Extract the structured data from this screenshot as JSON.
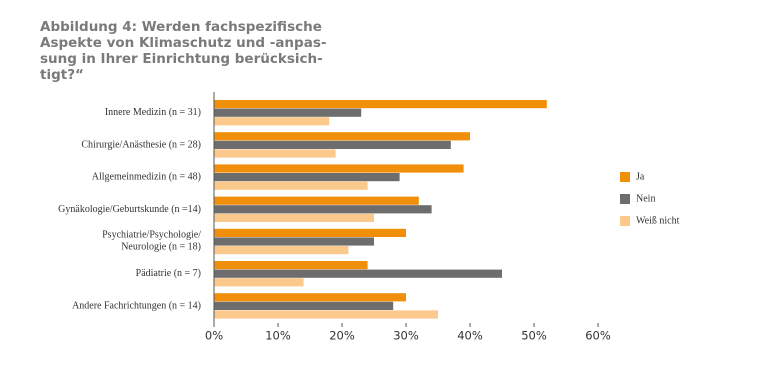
{
  "chart_data": {
    "type": "bar",
    "orientation": "horizontal",
    "title": [
      "Abbildung 4: Werden fachspezifische",
      "Aspekte von Klimaschutz und -anpas-",
      "sung in Ihrer Einrichtung berücksich-",
      "tigt?“"
    ],
    "categories": [
      "Innere Medizin (n = 31)",
      "Chirurgie/Anästhesie (n = 28)",
      "Allgemeinmedizin (n = 48)",
      "Gynäkologie/Geburtskunde (n =14)",
      "Psychiatrie/Psychologie/\nNeurologie (n = 18)",
      "Pädiatrie (n = 7)",
      "Andere Fachrichtungen (n = 14)"
    ],
    "series": [
      {
        "name": "Ja",
        "color": "#f0900a",
        "values": [
          52,
          40,
          39,
          32,
          30,
          24,
          30
        ]
      },
      {
        "name": "Nein",
        "color": "#6d6d6d",
        "values": [
          23,
          37,
          29,
          34,
          25,
          45,
          28
        ]
      },
      {
        "name": "Weiß nicht",
        "color": "#fcc98c",
        "values": [
          18,
          19,
          24,
          25,
          21,
          14,
          35
        ]
      }
    ],
    "xlim": [
      0,
      60
    ],
    "xticks": [
      {
        "value": 0,
        "label": "0%"
      },
      {
        "value": 10,
        "label": "10%"
      },
      {
        "value": 20,
        "label": "20%"
      },
      {
        "value": 30,
        "label": "30%"
      },
      {
        "value": 40,
        "label": "40%"
      },
      {
        "value": 50,
        "label": "50%"
      },
      {
        "value": 60,
        "label": "60%"
      }
    ],
    "grid": false,
    "legend": "right"
  }
}
